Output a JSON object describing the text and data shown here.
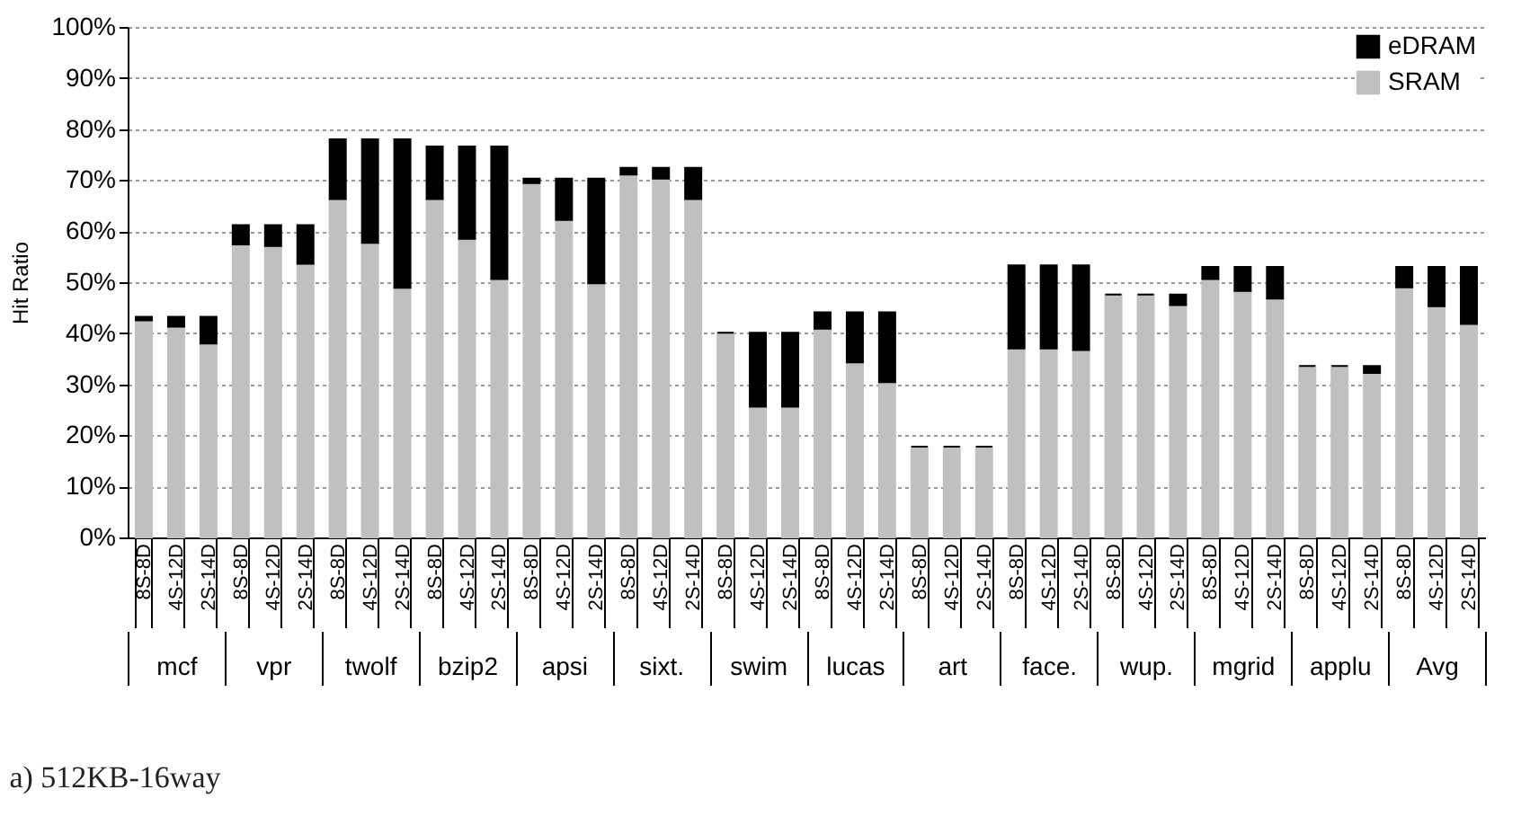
{
  "chart_data": {
    "type": "bar",
    "title": "a) 512KB-16way",
    "ylabel": "Hit Ratio",
    "stacked": true,
    "grid": "y",
    "legend": "top right",
    "categories": [
      "8S-8D",
      "4S-12D",
      "2S-14D",
      "8S-8D",
      "4S-12D",
      "2S-14D",
      "8S-8D",
      "4S-12D",
      "2S-14D",
      "8S-8D",
      "4S-12D",
      "2S-14D",
      "8S-8D",
      "4S-12D",
      "2S-14D",
      "8S-8D",
      "4S-12D",
      "2S-14D",
      "8S-8D",
      "4S-12D",
      "2S-14D",
      "8S-8D",
      "4S-12D",
      "2S-14D",
      "8S-8D",
      "4S-12D",
      "2S-14D",
      "8S-8D",
      "4S-12D",
      "2S-14D",
      "8S-8D",
      "4S-12D",
      "2S-14D",
      "8S-8D",
      "4S-12D",
      "2S-14D",
      "8S-8D",
      "4S-12D",
      "2S-14D",
      "8S-8D",
      "4S-12D",
      "2S-14D"
    ],
    "annotations": [
      "mcf",
      "vpr",
      "twolf",
      "bzip2",
      "apsi",
      "sixt.",
      "swim",
      "lucas",
      "art",
      "face.",
      "wup.",
      "mgrid",
      "applu",
      "Avg"
    ],
    "ylim": [
      0,
      100
    ],
    "yticks": [
      {
        "value": 0,
        "label": "0%"
      },
      {
        "value": 10,
        "label": "10%"
      },
      {
        "value": 20,
        "label": "20%"
      },
      {
        "value": 30,
        "label": "30%"
      },
      {
        "value": 40,
        "label": "40%"
      },
      {
        "value": 50,
        "label": "50%"
      },
      {
        "value": 60,
        "label": "60%"
      },
      {
        "value": 70,
        "label": "70%"
      },
      {
        "value": 80,
        "label": "80%"
      },
      {
        "value": 90,
        "label": "90%"
      },
      {
        "value": 100,
        "label": "100%"
      }
    ],
    "series": [
      {
        "name": "SRAM",
        "color": "#c0c0c0",
        "values": [
          42.5,
          41.3,
          38.0,
          57.4,
          57.1,
          53.6,
          66.3,
          57.7,
          48.9,
          66.3,
          58.5,
          50.6,
          69.4,
          62.2,
          49.8,
          71.1,
          70.3,
          66.3,
          40.1,
          25.6,
          25.6,
          40.9,
          34.3,
          30.4,
          17.8,
          17.8,
          17.8,
          37.0,
          37.0,
          36.7,
          47.6,
          47.6,
          45.5,
          50.6,
          48.3,
          46.8,
          33.6,
          33.6,
          32.2,
          49.0,
          45.3,
          41.8
        ]
      },
      {
        "name": "eDRAM",
        "color": "#000000",
        "values": [
          0.7,
          1.9,
          5.2,
          3.8,
          4.1,
          7.6,
          11.7,
          20.3,
          29.1,
          10.3,
          18.1,
          26.0,
          0.9,
          8.1,
          20.5,
          1.3,
          2.1,
          6.1,
          0,
          14.5,
          14.5,
          3.2,
          9.8,
          13.7,
          0,
          0,
          0,
          16.3,
          16.3,
          16.6,
          0,
          0,
          2.1,
          2.4,
          4.7,
          6.2,
          0,
          0,
          1.4,
          4.0,
          7.7,
          11.2
        ]
      }
    ]
  }
}
